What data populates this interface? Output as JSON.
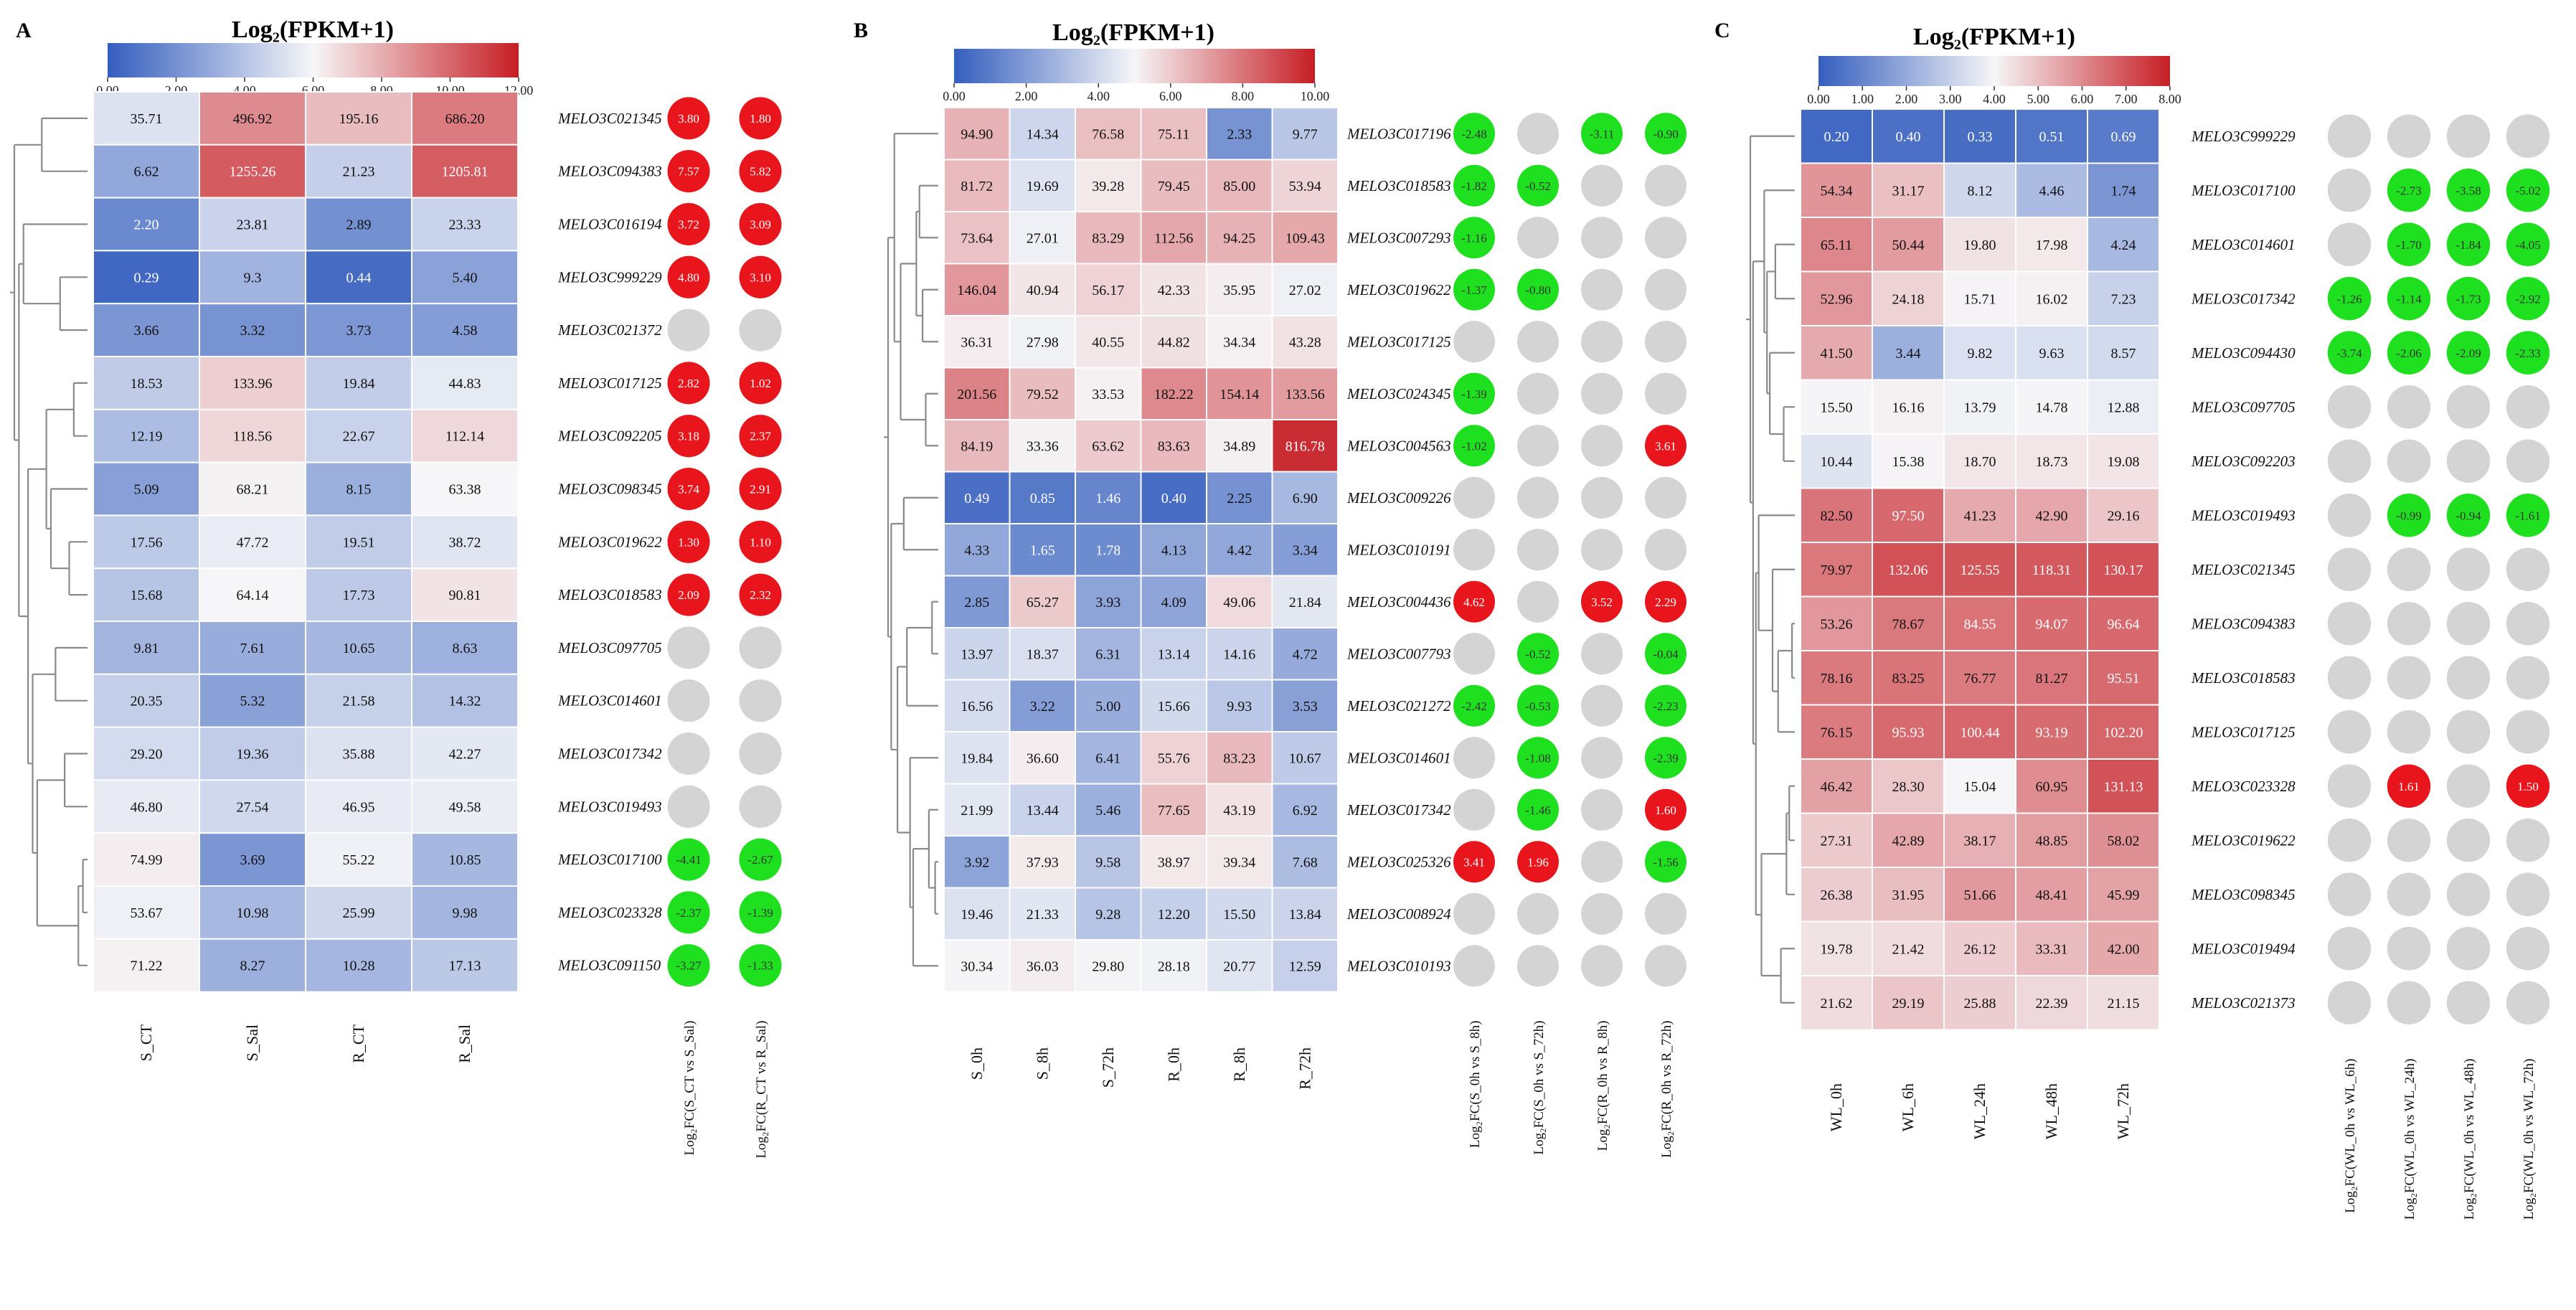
{
  "chart_data": [
    {
      "type": "heatmap",
      "panel_label": "A",
      "title": "Log₂(FPKM+1)",
      "color_min": 0.0,
      "color_max": 12.0,
      "colorbar_ticks": [
        "0.00",
        "2.00",
        "4.00",
        "6.00",
        "8.00",
        "10.00",
        "12.00"
      ],
      "columns": [
        "S_CT",
        "S_Sal",
        "R_CT",
        "R_Sal"
      ],
      "rows": [
        "MELO3C021345",
        "MELO3C094383",
        "MELO3C016194",
        "MELO3C999229",
        "MELO3C021372",
        "MELO3C017125",
        "MELO3C092205",
        "MELO3C098345",
        "MELO3C019622",
        "MELO3C018583",
        "MELO3C097705",
        "MELO3C014601",
        "MELO3C017342",
        "MELO3C019493",
        "MELO3C017100",
        "MELO3C023328",
        "MELO3C091150"
      ],
      "values": [
        [
          "35.71",
          "496.92",
          "195.16",
          "686.20"
        ],
        [
          "6.62",
          "1255.26",
          "21.23",
          "1205.81"
        ],
        [
          "2.20",
          "23.81",
          "2.89",
          "23.33"
        ],
        [
          "0.29",
          "9.3",
          "0.44",
          "5.40"
        ],
        [
          "3.66",
          "3.32",
          "3.73",
          "4.58"
        ],
        [
          "18.53",
          "133.96",
          "19.84",
          "44.83"
        ],
        [
          "12.19",
          "118.56",
          "22.67",
          "112.14"
        ],
        [
          "5.09",
          "68.21",
          "8.15",
          "63.38"
        ],
        [
          "17.56",
          "47.72",
          "19.51",
          "38.72"
        ],
        [
          "15.68",
          "64.14",
          "17.73",
          "90.81"
        ],
        [
          "9.81",
          "7.61",
          "10.65",
          "8.63"
        ],
        [
          "20.35",
          "5.32",
          "21.58",
          "14.32"
        ],
        [
          "29.20",
          "19.36",
          "35.88",
          "42.27"
        ],
        [
          "46.80",
          "27.54",
          "46.95",
          "49.58"
        ],
        [
          "74.99",
          "3.69",
          "55.22",
          "10.85"
        ],
        [
          "53.67",
          "10.98",
          "25.99",
          "9.98"
        ],
        [
          "71.22",
          "8.27",
          "10.28",
          "17.13"
        ]
      ],
      "fc_columns": [
        "Log₂FC(S_CT vs S_Sal)",
        "Log₂FC(R_CT vs R_Sal)"
      ],
      "fc_values": [
        [
          "3.80",
          "1.80"
        ],
        [
          "7.57",
          "5.82"
        ],
        [
          "3.72",
          "3.09"
        ],
        [
          "4.80",
          "3.10"
        ],
        [
          "",
          ""
        ],
        [
          "2.82",
          "1.02"
        ],
        [
          "3.18",
          "2.37"
        ],
        [
          "3.74",
          "2.91"
        ],
        [
          "1.30",
          "1.10"
        ],
        [
          "2.09",
          "2.32"
        ],
        [
          "",
          ""
        ],
        [
          "",
          ""
        ],
        [
          "",
          ""
        ],
        [
          "",
          ""
        ],
        [
          "-4.41",
          "-2.67"
        ],
        [
          "-2.37",
          "-1.39"
        ],
        [
          "-3.27",
          "-1.33"
        ]
      ]
    },
    {
      "type": "heatmap",
      "panel_label": "B",
      "title": "Log₂(FPKM+1)",
      "color_min": 0.0,
      "color_max": 10.0,
      "colorbar_ticks": [
        "0.00",
        "2.00",
        "4.00",
        "6.00",
        "8.00",
        "10.00"
      ],
      "columns": [
        "S_0h",
        "S_8h",
        "S_72h",
        "R_0h",
        "R_8h",
        "R_72h"
      ],
      "rows": [
        "MELO3C017196",
        "MELO3C018583",
        "MELO3C007293",
        "MELO3C019622",
        "MELO3C017125",
        "MELO3C024345",
        "MELO3C004563",
        "MELO3C009226",
        "MELO3C010191",
        "MELO3C004436",
        "MELO3C007793",
        "MELO3C021272",
        "MELO3C014601",
        "MELO3C017342",
        "MELO3C025326",
        "MELO3C008924",
        "MELO3C010193"
      ],
      "values": [
        [
          "94.90",
          "14.34",
          "76.58",
          "75.11",
          "2.33",
          "9.77"
        ],
        [
          "81.72",
          "19.69",
          "39.28",
          "79.45",
          "85.00",
          "53.94"
        ],
        [
          "73.64",
          "27.01",
          "83.29",
          "112.56",
          "94.25",
          "109.43"
        ],
        [
          "146.04",
          "40.94",
          "56.17",
          "42.33",
          "35.95",
          "27.02"
        ],
        [
          "36.31",
          "27.98",
          "40.55",
          "44.82",
          "34.34",
          "43.28"
        ],
        [
          "201.56",
          "79.52",
          "33.53",
          "182.22",
          "154.14",
          "133.56"
        ],
        [
          "84.19",
          "33.36",
          "63.62",
          "83.63",
          "34.89",
          "816.78"
        ],
        [
          "0.49",
          "0.85",
          "1.46",
          "0.40",
          "2.25",
          "6.90"
        ],
        [
          "4.33",
          "1.65",
          "1.78",
          "4.13",
          "4.42",
          "3.34"
        ],
        [
          "2.85",
          "65.27",
          "3.93",
          "4.09",
          "49.06",
          "21.84"
        ],
        [
          "13.97",
          "18.37",
          "6.31",
          "13.14",
          "14.16",
          "4.72"
        ],
        [
          "16.56",
          "3.22",
          "5.00",
          "15.66",
          "9.93",
          "3.53"
        ],
        [
          "19.84",
          "36.60",
          "6.41",
          "55.76",
          "83.23",
          "10.67"
        ],
        [
          "21.99",
          "13.44",
          "5.46",
          "77.65",
          "43.19",
          "6.92"
        ],
        [
          "3.92",
          "37.93",
          "9.58",
          "38.97",
          "39.34",
          "7.68"
        ],
        [
          "19.46",
          "21.33",
          "9.28",
          "12.20",
          "15.50",
          "13.84"
        ],
        [
          "30.34",
          "36.03",
          "29.80",
          "28.18",
          "20.77",
          "12.59"
        ]
      ],
      "fc_columns": [
        "Log₂FC(S_0h vs S_8h)",
        "Log₂FC(S_0h vs S_72h)",
        "Log₂FC(R_0h vs R_8h)",
        "Log₂FC(R_0h vs R_72h)"
      ],
      "fc_values": [
        [
          "-2.48",
          "",
          "-3.11",
          "-0.90"
        ],
        [
          "-1.82",
          "-0.52",
          "",
          ""
        ],
        [
          "-1.16",
          "",
          "",
          ""
        ],
        [
          "-1.37",
          "-0.80",
          "",
          ""
        ],
        [
          "",
          "",
          "",
          ""
        ],
        [
          "-1.39",
          "",
          "",
          ""
        ],
        [
          "-1.02",
          "",
          "",
          "3.61"
        ],
        [
          "",
          "",
          "",
          ""
        ],
        [
          "",
          "",
          "",
          ""
        ],
        [
          "4.62",
          "",
          "3.52",
          "2.29"
        ],
        [
          "",
          "-0.52",
          "",
          "-0.04"
        ],
        [
          "-2.42",
          "-0.53",
          "",
          "-2.23"
        ],
        [
          "",
          "-1.08",
          "",
          "-2.39"
        ],
        [
          "",
          "-1.46",
          "",
          "1.60"
        ],
        [
          "3.41",
          "1.96",
          "",
          "-1.56"
        ],
        [
          "",
          "",
          "",
          ""
        ],
        [
          "",
          "",
          "",
          ""
        ]
      ]
    },
    {
      "type": "heatmap",
      "panel_label": "C",
      "title": "Log₂(FPKM+1)",
      "color_min": 0.0,
      "color_max": 8.0,
      "colorbar_ticks": [
        "0.00",
        "1.00",
        "2.00",
        "3.00",
        "4.00",
        "5.00",
        "6.00",
        "7.00",
        "8.00"
      ],
      "columns": [
        "WL_0h",
        "WL_6h",
        "WL_24h",
        "WL_48h",
        "WL_72h"
      ],
      "rows": [
        "MELO3C999229",
        "MELO3C017100",
        "MELO3C014601",
        "MELO3C017342",
        "MELO3C094430",
        "MELO3C097705",
        "MELO3C092203",
        "MELO3C019493",
        "MELO3C021345",
        "MELO3C094383",
        "MELO3C018583",
        "MELO3C017125",
        "MELO3C023328",
        "MELO3C019622",
        "MELO3C098345",
        "MELO3C019494",
        "MELO3C021373"
      ],
      "values": [
        [
          "0.20",
          "0.40",
          "0.33",
          "0.51",
          "0.69"
        ],
        [
          "54.34",
          "31.17",
          "8.12",
          "4.46",
          "1.74"
        ],
        [
          "65.11",
          "50.44",
          "19.80",
          "17.98",
          "4.24"
        ],
        [
          "52.96",
          "24.18",
          "15.71",
          "16.02",
          "7.23"
        ],
        [
          "41.50",
          "3.44",
          "9.82",
          "9.63",
          "8.57"
        ],
        [
          "15.50",
          "16.16",
          "13.79",
          "14.78",
          "12.88"
        ],
        [
          "10.44",
          "15.38",
          "18.70",
          "18.73",
          "19.08"
        ],
        [
          "82.50",
          "97.50",
          "41.23",
          "42.90",
          "29.16"
        ],
        [
          "79.97",
          "132.06",
          "125.55",
          "118.31",
          "130.17"
        ],
        [
          "53.26",
          "78.67",
          "84.55",
          "94.07",
          "96.64"
        ],
        [
          "78.16",
          "83.25",
          "76.77",
          "81.27",
          "95.51"
        ],
        [
          "76.15",
          "95.93",
          "100.44",
          "93.19",
          "102.20"
        ],
        [
          "46.42",
          "28.30",
          "15.04",
          "60.95",
          "131.13"
        ],
        [
          "27.31",
          "42.89",
          "38.17",
          "48.85",
          "58.02"
        ],
        [
          "26.38",
          "31.95",
          "51.66",
          "48.41",
          "45.99"
        ],
        [
          "19.78",
          "21.42",
          "26.12",
          "33.31",
          "42.00"
        ],
        [
          "21.62",
          "29.19",
          "25.88",
          "22.39",
          "21.15"
        ]
      ],
      "fc_columns": [
        "Log₂FC(WL_0h vs WL_6h)",
        "Log₂FC(WL_0h vs WL_24h)",
        "Log₂FC(WL_0h vs WL_48h)",
        "Log₂FC(WL_0h vs WL_72h)"
      ],
      "fc_values": [
        [
          "",
          "",
          "",
          ""
        ],
        [
          "",
          "-2.73",
          "-3.58",
          "-5.02"
        ],
        [
          "",
          "-1.70",
          "-1.84",
          "-4.05"
        ],
        [
          "-1.26",
          "-1.14",
          "-1.73",
          "-2.92"
        ],
        [
          "-3.74",
          "-2.06",
          "-2.09",
          "-2.33"
        ],
        [
          "",
          "",
          "",
          ""
        ],
        [
          "",
          "",
          "",
          ""
        ],
        [
          "",
          "-0.99",
          "-0.94",
          "-1.61"
        ],
        [
          "",
          "",
          "",
          ""
        ],
        [
          "",
          "",
          "",
          ""
        ],
        [
          "",
          "",
          "",
          ""
        ],
        [
          "",
          "",
          "",
          ""
        ],
        [
          "",
          "1.61",
          "",
          "1.50"
        ],
        [
          "",
          "",
          "",
          ""
        ],
        [
          "",
          "",
          "",
          ""
        ],
        [
          "",
          "",
          "",
          ""
        ],
        [
          "",
          "",
          "",
          ""
        ]
      ]
    }
  ]
}
